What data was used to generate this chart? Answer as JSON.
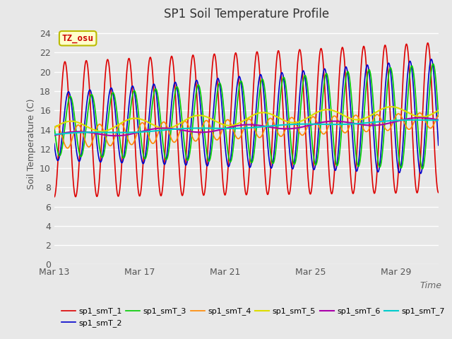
{
  "title": "SP1 Soil Temperature Profile",
  "xlabel": "Time",
  "ylabel": "Soil Temperature (C)",
  "ylim": [
    0,
    25
  ],
  "yticks": [
    0,
    2,
    4,
    6,
    8,
    10,
    12,
    14,
    16,
    18,
    20,
    22,
    24
  ],
  "xtick_labels": [
    "Mar 13",
    "Mar 17",
    "Mar 21",
    "Mar 25",
    "Mar 29"
  ],
  "xtick_positions": [
    0,
    4,
    8,
    12,
    16
  ],
  "xlim": [
    0,
    18
  ],
  "n_days": 18,
  "fig_bg": "#e8e8e8",
  "ax_bg": "#e8e8e8",
  "grid_color": "#ffffff",
  "annotation_text": "TZ_osu",
  "annotation_color": "#cc0000",
  "annotation_bg": "#ffffcc",
  "annotation_border": "#bbbb00",
  "series": [
    {
      "label": "sp1_smT_1",
      "color": "#dd0000",
      "lw": 1.2
    },
    {
      "label": "sp1_smT_2",
      "color": "#0000cc",
      "lw": 1.2
    },
    {
      "label": "sp1_smT_3",
      "color": "#00cc00",
      "lw": 1.2
    },
    {
      "label": "sp1_smT_4",
      "color": "#ff8800",
      "lw": 1.2
    },
    {
      "label": "sp1_smT_5",
      "color": "#dddd00",
      "lw": 1.5
    },
    {
      "label": "sp1_smT_6",
      "color": "#aa00aa",
      "lw": 1.5
    },
    {
      "label": "sp1_smT_7",
      "color": "#00cccc",
      "lw": 1.5
    }
  ],
  "legend_fontsize": 8,
  "title_fontsize": 12
}
